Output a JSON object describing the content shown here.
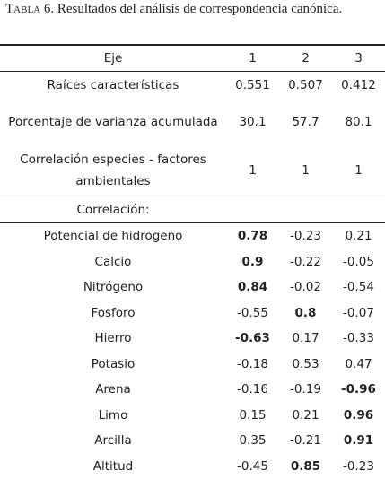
{
  "caption": {
    "label": "Tabla 6.",
    "text": "Resultados del análisis de correspondencia canónica."
  },
  "table": {
    "header": [
      "Eje",
      "1",
      "2",
      "3"
    ],
    "rows": [
      [
        "Raíces características",
        0.551,
        0.507,
        0.412
      ],
      [
        "Porcentaje de varianza acumulada",
        30.1,
        57.7,
        80.1
      ],
      [
        "Correlación especies - factores ambientales",
        1,
        1,
        1
      ]
    ],
    "section": "Correlación:",
    "correlation_rows": [
      [
        "Potencial de hidrogeno",
        0.78,
        -0.23,
        0.21
      ],
      [
        "Calcio",
        0.9,
        -0.22,
        -0.05
      ],
      [
        "Nitrógeno",
        0.84,
        -0.02,
        -0.54
      ],
      [
        "Fosforo",
        -0.55,
        0.8,
        -0.07
      ],
      [
        "Hierro",
        -0.63,
        0.17,
        -0.33
      ],
      [
        "Potasio",
        -0.18,
        0.53,
        0.47
      ],
      [
        "Arena",
        -0.16,
        -0.19,
        -0.96
      ],
      [
        "Limo",
        0.15,
        0.21,
        0.96
      ],
      [
        "Arcilla",
        0.35,
        -0.21,
        0.91
      ],
      [
        "Altitud",
        -0.45,
        0.85,
        -0.23
      ]
    ]
  }
}
